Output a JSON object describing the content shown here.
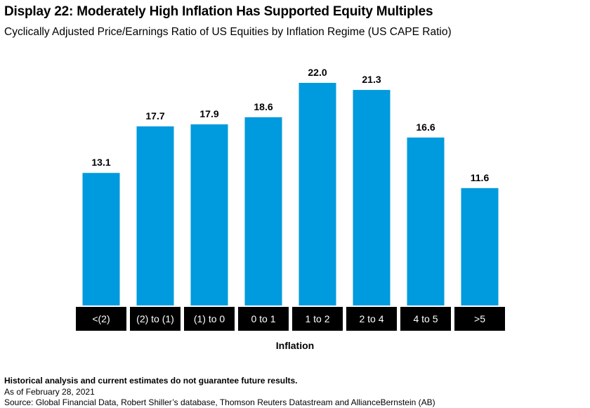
{
  "header": {
    "title": "Display 22: Moderately High Inflation Has Supported Equity Multiples",
    "subtitle": "Cyclically Adjusted Price/Earnings Ratio of US Equities by Inflation Regime (US CAPE Ratio)"
  },
  "chart_data": {
    "type": "bar",
    "title": "Display 22: Moderately High Inflation Has Supported Equity Multiples",
    "subtitle": "Cyclically Adjusted Price/Earnings Ratio of US Equities by Inflation Regime (US CAPE Ratio)",
    "xlabel": "Inflation",
    "ylabel": "",
    "categories": [
      "<(2)",
      "(2) to (1)",
      "(1) to 0",
      "0 to 1",
      "1 to 2",
      "2 to 4",
      "4 to 5",
      ">5"
    ],
    "values": [
      13.1,
      17.7,
      17.9,
      18.6,
      22.0,
      21.3,
      16.6,
      11.6
    ],
    "value_labels": [
      "13.1",
      "17.7",
      "17.9",
      "18.6",
      "22.0",
      "21.3",
      "16.6",
      "11.6"
    ],
    "ylim": [
      0,
      22
    ],
    "grid": false,
    "legend": "none",
    "bar_color": "#009ade",
    "category_label_background": "#000000",
    "category_label_color": "#ffffff"
  },
  "footer": {
    "disclaimer": "Historical analysis and current estimates do not guarantee future results.",
    "as_of": "As of February 28, 2021",
    "source": "Source: Global Financial Data, Robert Shiller’s database, Thomson Reuters Datastream and AllianceBernstein (AB)"
  }
}
